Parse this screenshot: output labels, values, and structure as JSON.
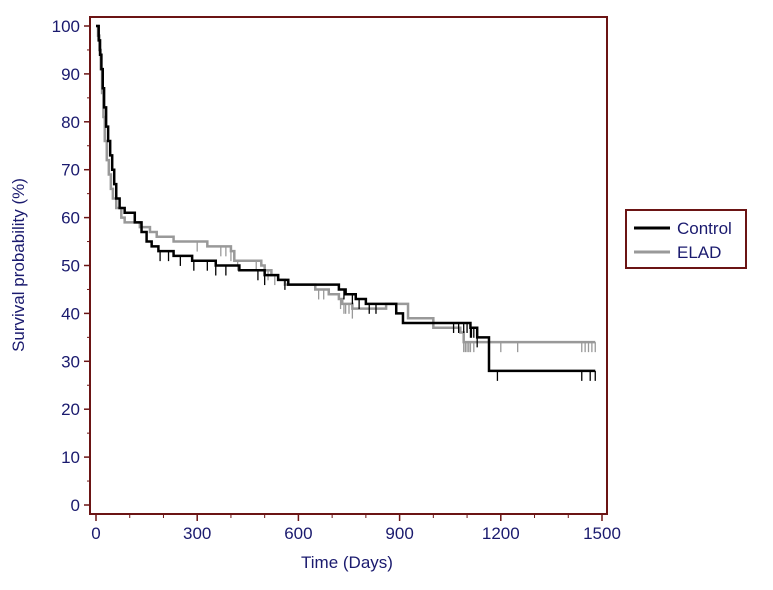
{
  "chart_data": {
    "type": "line",
    "subtype": "kaplan-meier step plot",
    "title": "",
    "xlabel": "Time (Days)",
    "ylabel": "Survival probability (%)",
    "xlim": [
      0,
      1500
    ],
    "ylim": [
      0,
      100
    ],
    "x_ticks": [
      0,
      300,
      600,
      900,
      1200,
      1500
    ],
    "y_ticks": [
      0,
      10,
      20,
      30,
      40,
      50,
      60,
      70,
      80,
      90,
      100
    ],
    "grid": false,
    "legend_position": "right",
    "series": [
      {
        "name": "Control",
        "color": "#000000",
        "points": [
          [
            0,
            100
          ],
          [
            8,
            97
          ],
          [
            12,
            94
          ],
          [
            16,
            91
          ],
          [
            20,
            87
          ],
          [
            24,
            83
          ],
          [
            30,
            79
          ],
          [
            36,
            76
          ],
          [
            42,
            73
          ],
          [
            48,
            70
          ],
          [
            54,
            67
          ],
          [
            60,
            64
          ],
          [
            70,
            62
          ],
          [
            85,
            61
          ],
          [
            115,
            59
          ],
          [
            135,
            57
          ],
          [
            150,
            55
          ],
          [
            165,
            54
          ],
          [
            185,
            53
          ],
          [
            230,
            52
          ],
          [
            285,
            51
          ],
          [
            355,
            50
          ],
          [
            425,
            49
          ],
          [
            500,
            48
          ],
          [
            540,
            47
          ],
          [
            570,
            46
          ],
          [
            720,
            45
          ],
          [
            740,
            44
          ],
          [
            770,
            43
          ],
          [
            800,
            42
          ],
          [
            890,
            40
          ],
          [
            910,
            38
          ],
          [
            1110,
            37
          ],
          [
            1130,
            35
          ],
          [
            1165,
            28
          ],
          [
            1480,
            28
          ]
        ],
        "censor_times": [
          190,
          215,
          250,
          290,
          330,
          355,
          385,
          480,
          500,
          560,
          735,
          760,
          780,
          810,
          830,
          1060,
          1075,
          1090,
          1100,
          1110,
          1113,
          1120,
          1130,
          1190,
          1440,
          1465,
          1480
        ]
      },
      {
        "name": "ELAD",
        "color": "#999999",
        "points": [
          [
            0,
            100
          ],
          [
            6,
            98
          ],
          [
            10,
            95
          ],
          [
            14,
            91
          ],
          [
            18,
            86
          ],
          [
            22,
            81
          ],
          [
            26,
            76
          ],
          [
            32,
            72
          ],
          [
            38,
            69
          ],
          [
            44,
            66
          ],
          [
            50,
            64
          ],
          [
            60,
            62
          ],
          [
            75,
            60
          ],
          [
            85,
            59
          ],
          [
            130,
            58
          ],
          [
            160,
            57
          ],
          [
            180,
            56
          ],
          [
            230,
            55
          ],
          [
            330,
            54
          ],
          [
            400,
            53
          ],
          [
            410,
            51
          ],
          [
            490,
            50
          ],
          [
            500,
            49
          ],
          [
            520,
            48
          ],
          [
            540,
            47
          ],
          [
            560,
            46
          ],
          [
            650,
            45
          ],
          [
            690,
            44
          ],
          [
            720,
            43
          ],
          [
            730,
            42
          ],
          [
            760,
            41
          ],
          [
            860,
            42
          ],
          [
            925,
            39
          ],
          [
            1000,
            37
          ],
          [
            1080,
            36
          ],
          [
            1090,
            34
          ],
          [
            1150,
            34
          ],
          [
            1160,
            34
          ],
          [
            1480,
            34
          ]
        ],
        "censor_times": [
          300,
          370,
          385,
          400,
          420,
          475,
          510,
          530,
          660,
          675,
          725,
          735,
          740,
          750,
          760,
          1090,
          1095,
          1100,
          1105,
          1110,
          1120,
          1200,
          1250,
          1440,
          1450,
          1460,
          1470,
          1480
        ]
      }
    ]
  }
}
